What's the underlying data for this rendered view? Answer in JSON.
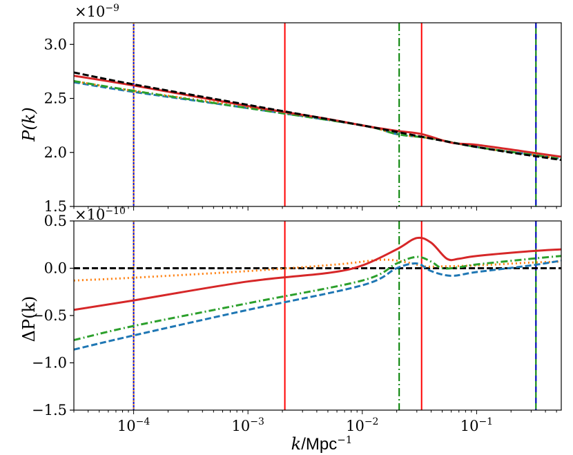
{
  "chart_data": [
    {
      "panel": "top",
      "type": "line",
      "xscale": "log",
      "xlim": [
        3e-05,
        0.55
      ],
      "ylim": [
        1.5,
        3.2
      ],
      "yticks": [
        1.5,
        2.0,
        2.5,
        3.0
      ],
      "ytick_labels": [
        "1.5",
        "2.0",
        "2.5",
        "3.0"
      ],
      "ylabel": "P(k)",
      "offset_text": "×10",
      "offset_exp": "−9",
      "vlines": [
        {
          "x": 0.0001,
          "color": "#0000cc",
          "style": "dotted-overlay",
          "overlay_color": "#ff9900"
        },
        {
          "x": 0.0021,
          "color": "#ff0000",
          "style": "solid"
        },
        {
          "x": 0.021,
          "color": "#008000",
          "style": "dashdot"
        },
        {
          "x": 0.033,
          "color": "#ff0000",
          "style": "solid"
        },
        {
          "x": 0.33,
          "color": "#008000",
          "style": "dashed-overlay",
          "overlay_color": "#0000cc"
        }
      ],
      "series": [
        {
          "name": "blue",
          "color": "#1f77b4",
          "dash": "dashed",
          "points": [
            [
              3e-05,
              2.65
            ],
            [
              0.0001,
              2.56
            ],
            [
              0.001,
              2.41
            ],
            [
              0.01,
              2.25
            ],
            [
              0.02,
              2.17
            ],
            [
              0.04,
              2.13
            ],
            [
              0.1,
              2.05
            ],
            [
              0.3,
              1.98
            ],
            [
              0.55,
              1.94
            ]
          ]
        },
        {
          "name": "orange",
          "color": "#ff7f0e",
          "dash": "dotted",
          "points": [
            [
              3e-05,
              2.66
            ],
            [
              0.0001,
              2.57
            ],
            [
              0.001,
              2.42
            ],
            [
              0.01,
              2.25
            ],
            [
              0.02,
              2.17
            ],
            [
              0.04,
              2.13
            ],
            [
              0.1,
              2.05
            ],
            [
              0.3,
              1.98
            ],
            [
              0.55,
              1.94
            ]
          ]
        },
        {
          "name": "green",
          "color": "#2ca02c",
          "dash": "dashdot",
          "points": [
            [
              3e-05,
              2.66
            ],
            [
              0.0001,
              2.57
            ],
            [
              0.001,
              2.41
            ],
            [
              0.01,
              2.25
            ],
            [
              0.02,
              2.17
            ],
            [
              0.04,
              2.13
            ],
            [
              0.1,
              2.05
            ],
            [
              0.3,
              1.98
            ],
            [
              0.55,
              1.94
            ]
          ]
        },
        {
          "name": "red",
          "color": "#d62728",
          "dash": "solid",
          "points": [
            [
              3e-05,
              2.71
            ],
            [
              0.0001,
              2.62
            ],
            [
              0.001,
              2.43
            ],
            [
              0.005,
              2.31
            ],
            [
              0.01,
              2.25
            ],
            [
              0.02,
              2.2
            ],
            [
              0.033,
              2.17
            ],
            [
              0.06,
              2.09
            ],
            [
              0.1,
              2.07
            ],
            [
              0.3,
              2.0
            ],
            [
              0.55,
              1.96
            ]
          ]
        },
        {
          "name": "reference",
          "color": "#000000",
          "dash": "dashed",
          "points": [
            [
              3e-05,
              2.74
            ],
            [
              0.0001,
              2.63
            ],
            [
              0.001,
              2.44
            ],
            [
              0.01,
              2.25
            ],
            [
              0.1,
              2.05
            ],
            [
              0.55,
              1.93
            ]
          ]
        }
      ]
    },
    {
      "panel": "bottom",
      "type": "line",
      "xscale": "log",
      "xlim": [
        3e-05,
        0.55
      ],
      "ylim": [
        -1.5,
        0.5
      ],
      "yticks": [
        -1.5,
        -1.0,
        -0.5,
        0.0,
        0.5
      ],
      "ytick_labels": [
        "−1.5",
        "−1.0",
        "−0.5",
        "0.0",
        "0.5"
      ],
      "xticks": [
        0.0001,
        0.001,
        0.01,
        0.1
      ],
      "xtick_base": "10",
      "xtick_exps": [
        "−4",
        "−3",
        "−2",
        "−1"
      ],
      "xlabel_k": "k",
      "xlabel_unit": "/Mpc",
      "xlabel_unit_exp": "−1",
      "ylabel": "ΔP(k)",
      "offset_text": "×10",
      "offset_exp": "−10",
      "vlines": [
        {
          "x": 0.0001,
          "color": "#0000cc",
          "style": "dotted-overlay",
          "overlay_color": "#ff9900"
        },
        {
          "x": 0.0021,
          "color": "#ff0000",
          "style": "solid"
        },
        {
          "x": 0.021,
          "color": "#008000",
          "style": "dashdot"
        },
        {
          "x": 0.033,
          "color": "#ff0000",
          "style": "solid"
        },
        {
          "x": 0.33,
          "color": "#008000",
          "style": "dashed-overlay",
          "overlay_color": "#0000cc"
        }
      ],
      "series": [
        {
          "name": "zero",
          "color": "#000000",
          "dash": "dashed",
          "points": [
            [
              3e-05,
              0.0
            ],
            [
              0.55,
              0.0
            ]
          ]
        },
        {
          "name": "orange",
          "color": "#ff7f0e",
          "dash": "dotted",
          "points": [
            [
              3e-05,
              -0.13
            ],
            [
              0.0001,
              -0.1
            ],
            [
              0.001,
              -0.03
            ],
            [
              0.006,
              0.04
            ],
            [
              0.015,
              0.09
            ],
            [
              0.025,
              0.06
            ],
            [
              0.035,
              0.02
            ],
            [
              0.05,
              0.02
            ],
            [
              0.1,
              0.03
            ],
            [
              0.3,
              0.06
            ],
            [
              0.55,
              0.07
            ]
          ]
        },
        {
          "name": "red",
          "color": "#d62728",
          "dash": "solid",
          "points": [
            [
              3e-05,
              -0.44
            ],
            [
              0.0001,
              -0.34
            ],
            [
              0.001,
              -0.14
            ],
            [
              0.005,
              -0.05
            ],
            [
              0.01,
              0.03
            ],
            [
              0.02,
              0.2
            ],
            [
              0.03,
              0.32
            ],
            [
              0.04,
              0.27
            ],
            [
              0.055,
              0.1
            ],
            [
              0.07,
              0.1
            ],
            [
              0.1,
              0.13
            ],
            [
              0.3,
              0.18
            ],
            [
              0.55,
              0.2
            ]
          ]
        },
        {
          "name": "green",
          "color": "#2ca02c",
          "dash": "dashdot",
          "points": [
            [
              3e-05,
              -0.76
            ],
            [
              0.0001,
              -0.61
            ],
            [
              0.001,
              -0.37
            ],
            [
              0.01,
              -0.13
            ],
            [
              0.02,
              0.05
            ],
            [
              0.03,
              0.12
            ],
            [
              0.04,
              0.07
            ],
            [
              0.05,
              0.0
            ],
            [
              0.07,
              0.01
            ],
            [
              0.1,
              0.04
            ],
            [
              0.3,
              0.1
            ],
            [
              0.55,
              0.13
            ]
          ]
        },
        {
          "name": "blue",
          "color": "#1f77b4",
          "dash": "dashed",
          "points": [
            [
              3e-05,
              -0.86
            ],
            [
              0.0001,
              -0.71
            ],
            [
              0.001,
              -0.44
            ],
            [
              0.01,
              -0.18
            ],
            [
              0.02,
              0.0
            ],
            [
              0.03,
              0.05
            ],
            [
              0.04,
              -0.03
            ],
            [
              0.06,
              -0.08
            ],
            [
              0.1,
              -0.04
            ],
            [
              0.3,
              0.03
            ],
            [
              0.55,
              0.08
            ]
          ]
        }
      ]
    }
  ]
}
